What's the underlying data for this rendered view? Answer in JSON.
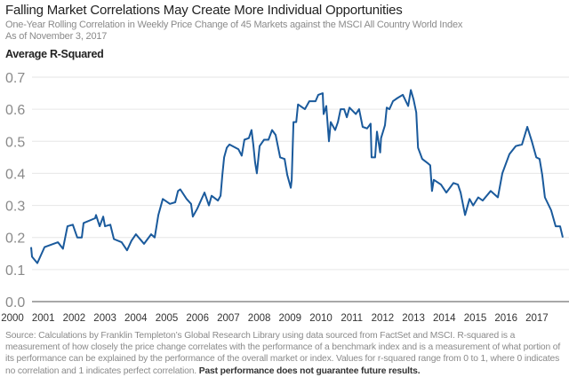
{
  "header": {
    "title": "Falling Market Correlations May Create More Individual Opportunities",
    "subtitle": "One-Year Rolling Correlation in Weekly Price Change of 45 Markets against the MSCI All Country World Index",
    "as_of": "As of November 3, 2017"
  },
  "footnote": {
    "text": "Source: Calculations by Franklin Templeton’s Global Research Library using data sourced from FactSet and MSCI. R-squared is a measurement of how closely the price change correlates with the performance of a benchmark index and is a measurement of what portion of its performance can be explained by the performance of the overall market or index. Values for r-squared range from 0 to 1, where 0 indicates no correlation and 1 indicates perfect correlation.",
    "bold": "Past performance does not guarantee future results."
  },
  "colors": {
    "line": "#1a5a9c",
    "grid": "#e6e6e6",
    "axis": "#8c8c8c"
  },
  "chart_data": {
    "type": "line",
    "title": "Falling Market Correlations May Create More Individual Opportunities",
    "ylabel": "Average R-Squared",
    "xlabel": "",
    "ylim": [
      0,
      0.7
    ],
    "xlim": [
      2000,
      2017.85
    ],
    "yticks": [
      "0.0",
      "0.1",
      "0.2",
      "0.3",
      "0.4",
      "0.5",
      "0.6",
      "0.7"
    ],
    "xticks": [
      "2000",
      "2001",
      "2002",
      "2003",
      "2004",
      "2005",
      "2006",
      "2007",
      "2008",
      "2009",
      "2010",
      "2011",
      "2012",
      "2013",
      "2014",
      "2015",
      "2016",
      "2017"
    ],
    "grid": true,
    "series": [
      {
        "name": "Average R-Squared",
        "x": [
          2000.0,
          2000.03,
          2000.21,
          2000.45,
          2000.9,
          2001.07,
          2001.22,
          2001.4,
          2001.55,
          2001.7,
          2001.76,
          2002.15,
          2002.18,
          2002.3,
          2002.42,
          2002.48,
          2002.66,
          2002.78,
          2003.04,
          2003.22,
          2003.37,
          2003.52,
          2003.7,
          2003.79,
          2004.03,
          2004.15,
          2004.27,
          2004.42,
          2004.66,
          2004.84,
          2004.93,
          2005.01,
          2005.22,
          2005.37,
          2005.43,
          2005.58,
          2005.82,
          2005.97,
          2006.06,
          2006.27,
          2006.36,
          2006.42,
          2006.48,
          2006.57,
          2006.66,
          2006.96,
          2007.07,
          2007.16,
          2007.31,
          2007.4,
          2007.46,
          2007.52,
          2007.58,
          2007.67,
          2007.82,
          2007.97,
          2008.09,
          2008.21,
          2008.36,
          2008.51,
          2008.6,
          2008.72,
          2008.75,
          2008.81,
          2008.9,
          2008.96,
          2009.19,
          2009.34,
          2009.55,
          2009.64,
          2009.79,
          2009.82,
          2009.91,
          2010.0,
          2010.06,
          2010.21,
          2010.3,
          2010.39,
          2010.51,
          2010.6,
          2010.69,
          2010.9,
          2011.01,
          2011.13,
          2011.28,
          2011.4,
          2011.43,
          2011.55,
          2011.61,
          2011.72,
          2011.75,
          2011.88,
          2011.94,
          2012.03,
          2012.15,
          2012.3,
          2012.48,
          2012.66,
          2012.75,
          2012.84,
          2012.93,
          2012.99,
          2013.13,
          2013.34,
          2013.4,
          2013.46,
          2013.52,
          2013.76,
          2013.94,
          2014.18,
          2014.33,
          2014.42,
          2014.57,
          2014.72,
          2014.84,
          2015.01,
          2015.16,
          2015.43,
          2015.67,
          2015.82,
          2016.06,
          2016.27,
          2016.48,
          2016.66,
          2016.81,
          2016.96,
          2017.07,
          2017.16,
          2017.25,
          2017.46,
          2017.61,
          2017.76,
          2017.85
        ],
        "values": [
          0.17,
          0.14,
          0.12,
          0.17,
          0.185,
          0.165,
          0.235,
          0.24,
          0.2,
          0.2,
          0.245,
          0.26,
          0.27,
          0.235,
          0.265,
          0.235,
          0.24,
          0.195,
          0.185,
          0.16,
          0.19,
          0.21,
          0.19,
          0.18,
          0.21,
          0.2,
          0.27,
          0.32,
          0.305,
          0.31,
          0.345,
          0.35,
          0.32,
          0.305,
          0.265,
          0.29,
          0.34,
          0.3,
          0.33,
          0.315,
          0.33,
          0.395,
          0.45,
          0.48,
          0.49,
          0.475,
          0.455,
          0.505,
          0.51,
          0.535,
          0.49,
          0.435,
          0.4,
          0.485,
          0.505,
          0.505,
          0.535,
          0.52,
          0.45,
          0.445,
          0.395,
          0.355,
          0.38,
          0.56,
          0.56,
          0.615,
          0.6,
          0.625,
          0.625,
          0.645,
          0.65,
          0.585,
          0.61,
          0.5,
          0.56,
          0.535,
          0.56,
          0.6,
          0.6,
          0.575,
          0.605,
          0.585,
          0.6,
          0.545,
          0.54,
          0.555,
          0.45,
          0.45,
          0.53,
          0.465,
          0.51,
          0.55,
          0.605,
          0.6,
          0.625,
          0.635,
          0.645,
          0.61,
          0.66,
          0.63,
          0.59,
          0.48,
          0.445,
          0.43,
          0.425,
          0.345,
          0.38,
          0.365,
          0.34,
          0.37,
          0.365,
          0.34,
          0.27,
          0.32,
          0.3,
          0.325,
          0.315,
          0.345,
          0.325,
          0.4,
          0.46,
          0.485,
          0.49,
          0.545,
          0.5,
          0.45,
          0.445,
          0.395,
          0.325,
          0.285,
          0.235,
          0.235,
          0.2
        ]
      }
    ]
  }
}
